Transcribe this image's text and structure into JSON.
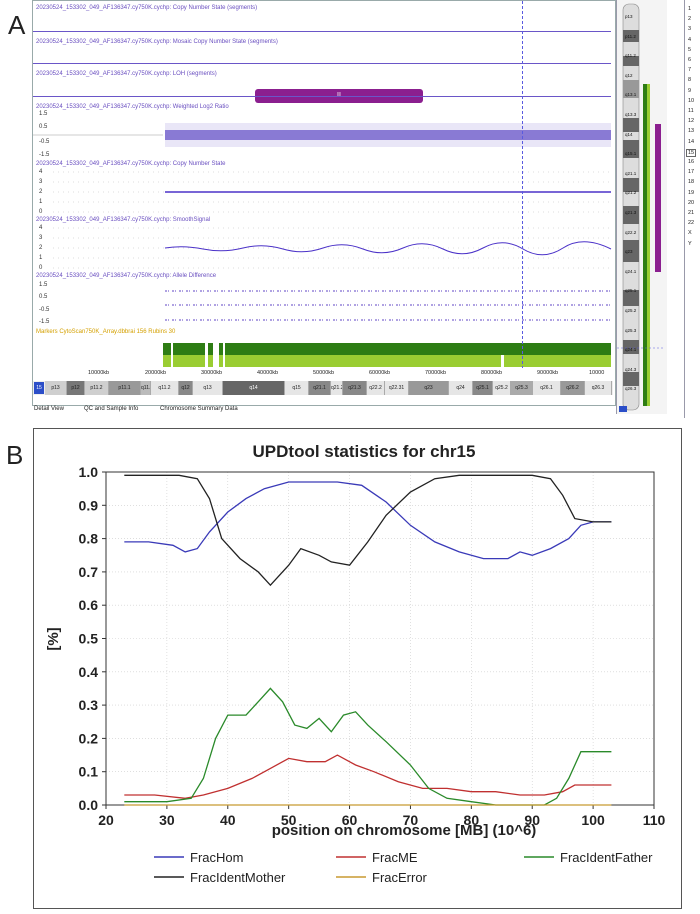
{
  "panel_a": {
    "label": "A",
    "tracks": [
      {
        "title": "20230524_153302_049_AF136347.cy750K.cychp: Copy Number State (segments)"
      },
      {
        "title": "20230524_153302_049_AF136347.cy750K.cychp: Mosaic Copy Number State (segments)"
      },
      {
        "title": "20230524_153302_049_AF136347.cy750K.cychp: LOH (segments)"
      },
      {
        "title": "20230524_153302_049_AF136347.cy750K.cychp: Weighted Log2 Ratio",
        "ticks": [
          "1.5",
          "0.5",
          "-0.5",
          "-1.5"
        ]
      },
      {
        "title": "20230524_153302_049_AF136347.cy750K.cychp: Copy Number State",
        "ticks": [
          "4",
          "3",
          "2",
          "1",
          "0"
        ]
      },
      {
        "title": "20230524_153302_049_AF136347.cy750K.cychp: SmoothSignal",
        "ticks": [
          "4",
          "3",
          "2",
          "1",
          "0"
        ]
      },
      {
        "title": "20230524_153302_049_AF136347.cy750K.cychp: Allele Difference",
        "ticks": [
          "1.5",
          "0.5",
          "-0.5",
          "-1.5"
        ]
      }
    ],
    "markers_label": "Markers CytoScan750K_Array.dbbrai 156 Rubins 30",
    "loh_segment_label": "II",
    "kb_ticks": [
      "10000kb",
      "20000kb",
      "30000kb",
      "40000kb",
      "50000kb",
      "60000kb",
      "70000kb",
      "80000kb",
      "90000kb",
      "10000"
    ],
    "bands": [
      "p13",
      "p12",
      "p11.2",
      "p11.1",
      "q11.1",
      "q11.2",
      "q12",
      "q13",
      "q14",
      "q15",
      "q21.1",
      "q21.2",
      "q21.3",
      "q22.2",
      "q22.31",
      "q23",
      "q24",
      "q25.1",
      "q25.2",
      "q25.3",
      "q26.1",
      "q26.2",
      "q26.3"
    ],
    "ideogram_bands": [
      "p13",
      "p11.2",
      "q11.2",
      "q12",
      "q13.1",
      "q13.3",
      "q14",
      "q15.1",
      "q21.1",
      "q21.2",
      "q21.3",
      "q22.2",
      "q23",
      "q24.1",
      "q25.1",
      "q25.2",
      "q25.3",
      "q24.1",
      "q24.3",
      "q26.3"
    ],
    "chromosomes": [
      "1",
      "2",
      "3",
      "4",
      "5",
      "6",
      "7",
      "8",
      "9",
      "10",
      "11",
      "12",
      "13",
      "14",
      "15",
      "16",
      "17",
      "18",
      "19",
      "20",
      "21",
      "22",
      "X",
      "Y"
    ],
    "selected_chromosome": "15",
    "tabs": [
      "Detail View",
      "QC and Sample Info",
      "Chromosome Summary Data"
    ],
    "chr_badge": "15",
    "colors": {
      "purple": "#8b1f8f",
      "green_dark": "#2e7d14",
      "green_light": "#9acd32",
      "track": "#6a56c8"
    }
  },
  "panel_b": {
    "label": "B",
    "chart_data": {
      "type": "line",
      "title": "UPDtool statistics for chr15",
      "xlabel": "position on chromosome [MB] (10^6)",
      "ylabel": "[%]",
      "xlim": [
        20,
        110
      ],
      "ylim": [
        0.0,
        1.0
      ],
      "xticks": [
        "20",
        "30",
        "40",
        "50",
        "60",
        "70",
        "80",
        "90",
        "100",
        "110"
      ],
      "yticks": [
        "0.0",
        "0.1",
        "0.2",
        "0.3",
        "0.4",
        "0.5",
        "0.6",
        "0.7",
        "0.8",
        "0.9",
        "1.0"
      ],
      "series": [
        {
          "name": "FracHom",
          "color": "#3a3ab8",
          "x": [
            23,
            27,
            31,
            33,
            35,
            37,
            40,
            43,
            46,
            50,
            54,
            58,
            62,
            66,
            70,
            74,
            78,
            82,
            86,
            88,
            90,
            93,
            96,
            98,
            100,
            103
          ],
          "y": [
            0.79,
            0.79,
            0.78,
            0.76,
            0.77,
            0.82,
            0.88,
            0.92,
            0.95,
            0.97,
            0.97,
            0.97,
            0.96,
            0.91,
            0.84,
            0.79,
            0.76,
            0.74,
            0.74,
            0.76,
            0.75,
            0.77,
            0.8,
            0.84,
            0.85,
            0.85
          ]
        },
        {
          "name": "FracIdentMother",
          "color": "#222222",
          "x": [
            23,
            28,
            32,
            35,
            37,
            39,
            42,
            45,
            47,
            50,
            52,
            55,
            57,
            60,
            63,
            66,
            70,
            74,
            78,
            82,
            86,
            90,
            93,
            95,
            97,
            100,
            103
          ],
          "y": [
            0.99,
            0.99,
            0.99,
            0.98,
            0.92,
            0.8,
            0.74,
            0.7,
            0.66,
            0.72,
            0.77,
            0.75,
            0.73,
            0.72,
            0.79,
            0.87,
            0.94,
            0.98,
            0.99,
            0.99,
            0.99,
            0.99,
            0.98,
            0.93,
            0.86,
            0.85,
            0.85
          ]
        },
        {
          "name": "FracME",
          "color": "#c03030",
          "x": [
            23,
            28,
            33,
            36,
            40,
            44,
            47,
            50,
            53,
            56,
            58,
            61,
            64,
            68,
            72,
            76,
            80,
            84,
            88,
            92,
            95,
            97,
            100,
            103
          ],
          "y": [
            0.03,
            0.03,
            0.02,
            0.03,
            0.05,
            0.08,
            0.11,
            0.14,
            0.13,
            0.13,
            0.15,
            0.12,
            0.1,
            0.07,
            0.05,
            0.05,
            0.04,
            0.04,
            0.03,
            0.03,
            0.04,
            0.06,
            0.06,
            0.06
          ]
        },
        {
          "name": "FracIdentFather",
          "color": "#2a8a2a",
          "x": [
            23,
            30,
            34,
            36,
            38,
            40,
            43,
            45,
            47,
            49,
            51,
            53,
            55,
            57,
            59,
            61,
            63,
            66,
            70,
            73,
            76,
            80,
            84,
            88,
            92,
            94,
            96,
            98,
            100,
            103
          ],
          "y": [
            0.01,
            0.01,
            0.02,
            0.08,
            0.2,
            0.27,
            0.27,
            0.31,
            0.35,
            0.31,
            0.24,
            0.23,
            0.26,
            0.22,
            0.27,
            0.28,
            0.24,
            0.19,
            0.12,
            0.05,
            0.02,
            0.01,
            0.0,
            0.0,
            0.0,
            0.02,
            0.08,
            0.16,
            0.16,
            0.16
          ]
        },
        {
          "name": "FracError",
          "color": "#c89a30",
          "x": [
            23,
            40,
            60,
            80,
            100,
            103
          ],
          "y": [
            0.0,
            0.0,
            0.0,
            0.0,
            0.0,
            0.0
          ]
        }
      ],
      "legend": [
        "FracHom",
        "FracME",
        "FracIdentFather",
        "FracIdentMother",
        "FracError"
      ],
      "legend_position": "bottom"
    }
  }
}
